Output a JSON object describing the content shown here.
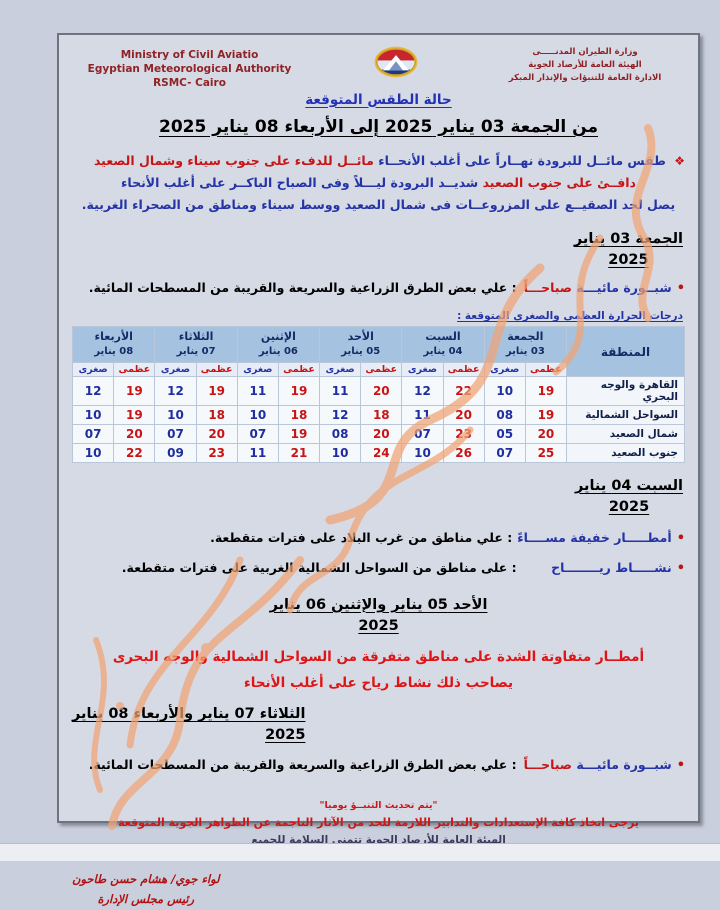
{
  "colors": {
    "page_background": "#c9cfdc",
    "document_background": "#d6dae5",
    "header_dark_red": "#8f2326",
    "text_blue": "#2433a6",
    "text_red": "#c81414",
    "alert_red": "#e01414",
    "table_header_blue": "#a5c3e0",
    "watermark_orange": "#f0a474"
  },
  "icons": {
    "logo": "egyptian-meteorological-authority-emblem",
    "watermark": "handwritten-orange-signature-scribble",
    "summary_marker": "❖",
    "bullet_dot": "•"
  },
  "header": {
    "ministry_en": [
      "Ministry of Civil Aviatio",
      "Egyptian Meteorological Authority",
      "RSMC- Cairo"
    ],
    "ministry_ar": [
      "وزارة الطيران المدنـــــى",
      "الهيئة العامة للأرصاد الجوية",
      "الادارة العامة للتنبؤات والإنذار المبكر"
    ],
    "doc_title": "حالة الطقس المتوقعة",
    "date_range": "من الجمعة 03 يناير 2025 إلى الأربعاء 08 يناير 2025"
  },
  "summary": {
    "marker": "❖",
    "line1_blue": "طقس مائــل للبرودة نهــاراً على أغلب الأنحــاء",
    "line1_red": "مائــل للدفء على جنوب سيناء وشمال الصعيد",
    "line2_red": "دافــئ على جنوب الصعيد",
    "line2_blue": "شديــد البرودة ليـــلاً وفى الصباح الباكــر على أغلب الأنحاء",
    "line3_blue": "يصل لحد الصقيــع على المزروعــات فى شمال الصعيد ووسط سيناء ومناطق من الصحراء الغربية."
  },
  "friday": {
    "heading_line1": "الجمعة 03 يناير",
    "heading_line2": "2025",
    "bullet": {
      "dot": "•",
      "label_blue": "شبــورة مائيـــة",
      "label_red": "صباحـــاً",
      "desc": ": علي بعض الطرق الزراعية والسريعة والقريبة من المسطحات المائية."
    }
  },
  "temps": {
    "caption": "درجات الحرارة العظمى والصغرى المتوقعة :",
    "region_header": "المنطقة",
    "max_label": "عظمى",
    "min_label": "صغرى",
    "days": [
      {
        "name": "الجمعة",
        "date": "03 يناير"
      },
      {
        "name": "السبت",
        "date": "04 يناير"
      },
      {
        "name": "الأحد",
        "date": "05 يناير"
      },
      {
        "name": "الإثنين",
        "date": "06 يناير"
      },
      {
        "name": "الثلاثاء",
        "date": "07 يناير"
      },
      {
        "name": "الأربعاء",
        "date": "08 يناير"
      }
    ],
    "rows": [
      {
        "region": "القاهرة والوجه البحري",
        "temps": [
          [
            "19",
            "10"
          ],
          [
            "22",
            "12"
          ],
          [
            "20",
            "11"
          ],
          [
            "19",
            "11"
          ],
          [
            "19",
            "12"
          ],
          [
            "19",
            "12"
          ]
        ]
      },
      {
        "region": "السواحل الشمالية",
        "temps": [
          [
            "19",
            "08"
          ],
          [
            "20",
            "11"
          ],
          [
            "18",
            "12"
          ],
          [
            "18",
            "10"
          ],
          [
            "18",
            "10"
          ],
          [
            "19",
            "10"
          ]
        ]
      },
      {
        "region": "شمال الصعيد",
        "temps": [
          [
            "20",
            "05"
          ],
          [
            "23",
            "07"
          ],
          [
            "20",
            "08"
          ],
          [
            "19",
            "07"
          ],
          [
            "20",
            "07"
          ],
          [
            "20",
            "07"
          ]
        ]
      },
      {
        "region": "جنوب الصعيد",
        "temps": [
          [
            "25",
            "07"
          ],
          [
            "26",
            "10"
          ],
          [
            "24",
            "10"
          ],
          [
            "21",
            "11"
          ],
          [
            "23",
            "09"
          ],
          [
            "22",
            "10"
          ]
        ]
      }
    ]
  },
  "saturday": {
    "heading_line1": "السبت 04 يناير",
    "heading_line2": "2025",
    "bullet1": {
      "dot": "•",
      "label": "أمطـــــار خفيفة مســــاءً",
      "desc": ": علي مناطق من غرب البلاد على فترات متقطعة."
    },
    "bullet2": {
      "dot": "•",
      "label": "نشـــــاط ريــــــــاح",
      "desc": ": على مناطق من السواحل الشمالية الغربية على فترات متقطعة."
    }
  },
  "sun_mon": {
    "heading_line1": "الأحد 05 يناير والإثنين 06 يناير",
    "heading_line2": "2025",
    "alert_line1": "أمطــار متفاوتة الشدة على مناطق متفرقة من السواحل الشمالية والوجه البحرى",
    "alert_line2": "يصاحب ذلك نشاط رياح على أغلب الأنحاء"
  },
  "tue_wed": {
    "heading_line1": "الثلاثاء 07 يناير والأربعاء 08 يناير",
    "heading_line2": "2025",
    "bullet": {
      "dot": "•",
      "label_blue": "شبــورة مائيـــة",
      "label_red": "صباحـــاً",
      "desc": ": علي بعض الطرق الزراعية والسريعة والقريبة من المسطحات المائية."
    }
  },
  "footer": {
    "note": "\"يتم تحديث التنبــؤ يوميا\"",
    "advice": "يرجى اتخاذ كافة الإستعدادات والتدابير اللازمة للحد من الآثار الناجمة عن الظواهر الجوية المتوقعة",
    "wish": "الهيئة العامة للأرصاد الجوية تتمنى السلامة للجميع",
    "signature_name": "لواء جوي/ هشام حسن طاحون",
    "signature_title": "رئيس مجلس الإدارة"
  }
}
